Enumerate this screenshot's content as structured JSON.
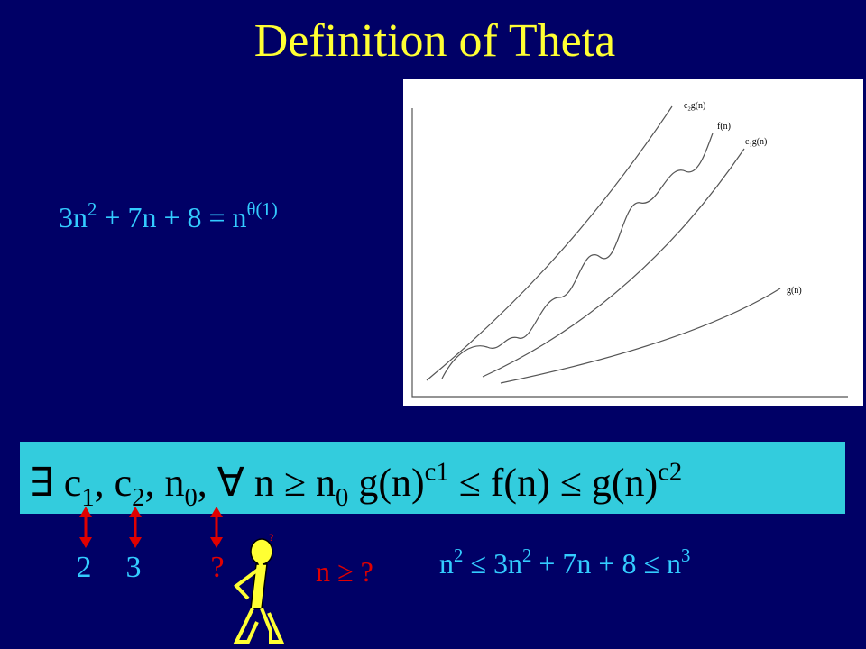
{
  "slide": {
    "title": "Definition of  Theta",
    "equation": [
      {
        "text": "3n"
      },
      {
        "text": "2",
        "pos": "sup"
      },
      {
        "text": " + 7n  + 8 = n"
      },
      {
        "text": "θ(1)",
        "pos": "sup"
      }
    ],
    "figure_labels": [
      [
        {
          "text": "c"
        },
        {
          "text": "2",
          "pos": "sub"
        },
        {
          "text": "g(n)"
        }
      ],
      [
        {
          "text": "f(n)"
        }
      ],
      [
        {
          "text": "c"
        },
        {
          "text": "1",
          "pos": "sub"
        },
        {
          "text": "g(n)"
        }
      ],
      [
        {
          "text": "g(n)"
        }
      ]
    ],
    "definition": [
      {
        "text": "∃ c"
      },
      {
        "text": "1",
        "pos": "sub"
      },
      {
        "text": ", c"
      },
      {
        "text": "2",
        "pos": "sub"
      },
      {
        "text": ",  n"
      },
      {
        "text": "0",
        "pos": "sub"
      },
      {
        "text": ", ∀ n ≥ n"
      },
      {
        "text": "0",
        "pos": "sub"
      },
      {
        "text": " g(n)"
      },
      {
        "text": "c1",
        "pos": "sup"
      },
      {
        "text": " ≤ f(n) ≤ g(n)"
      },
      {
        "text": "c2",
        "pos": "sup"
      }
    ],
    "constants": [
      "2",
      "3",
      "?"
    ],
    "n_condition": [
      {
        "text": "n ≥ ?"
      }
    ],
    "inequality": [
      {
        "text": "n"
      },
      {
        "text": "2",
        "pos": "sup"
      },
      {
        "text": " ≤ 3n"
      },
      {
        "text": "2",
        "pos": "sup"
      },
      {
        "text": " + 7n  + 8  ≤ n"
      },
      {
        "text": "3",
        "pos": "sup"
      }
    ]
  }
}
